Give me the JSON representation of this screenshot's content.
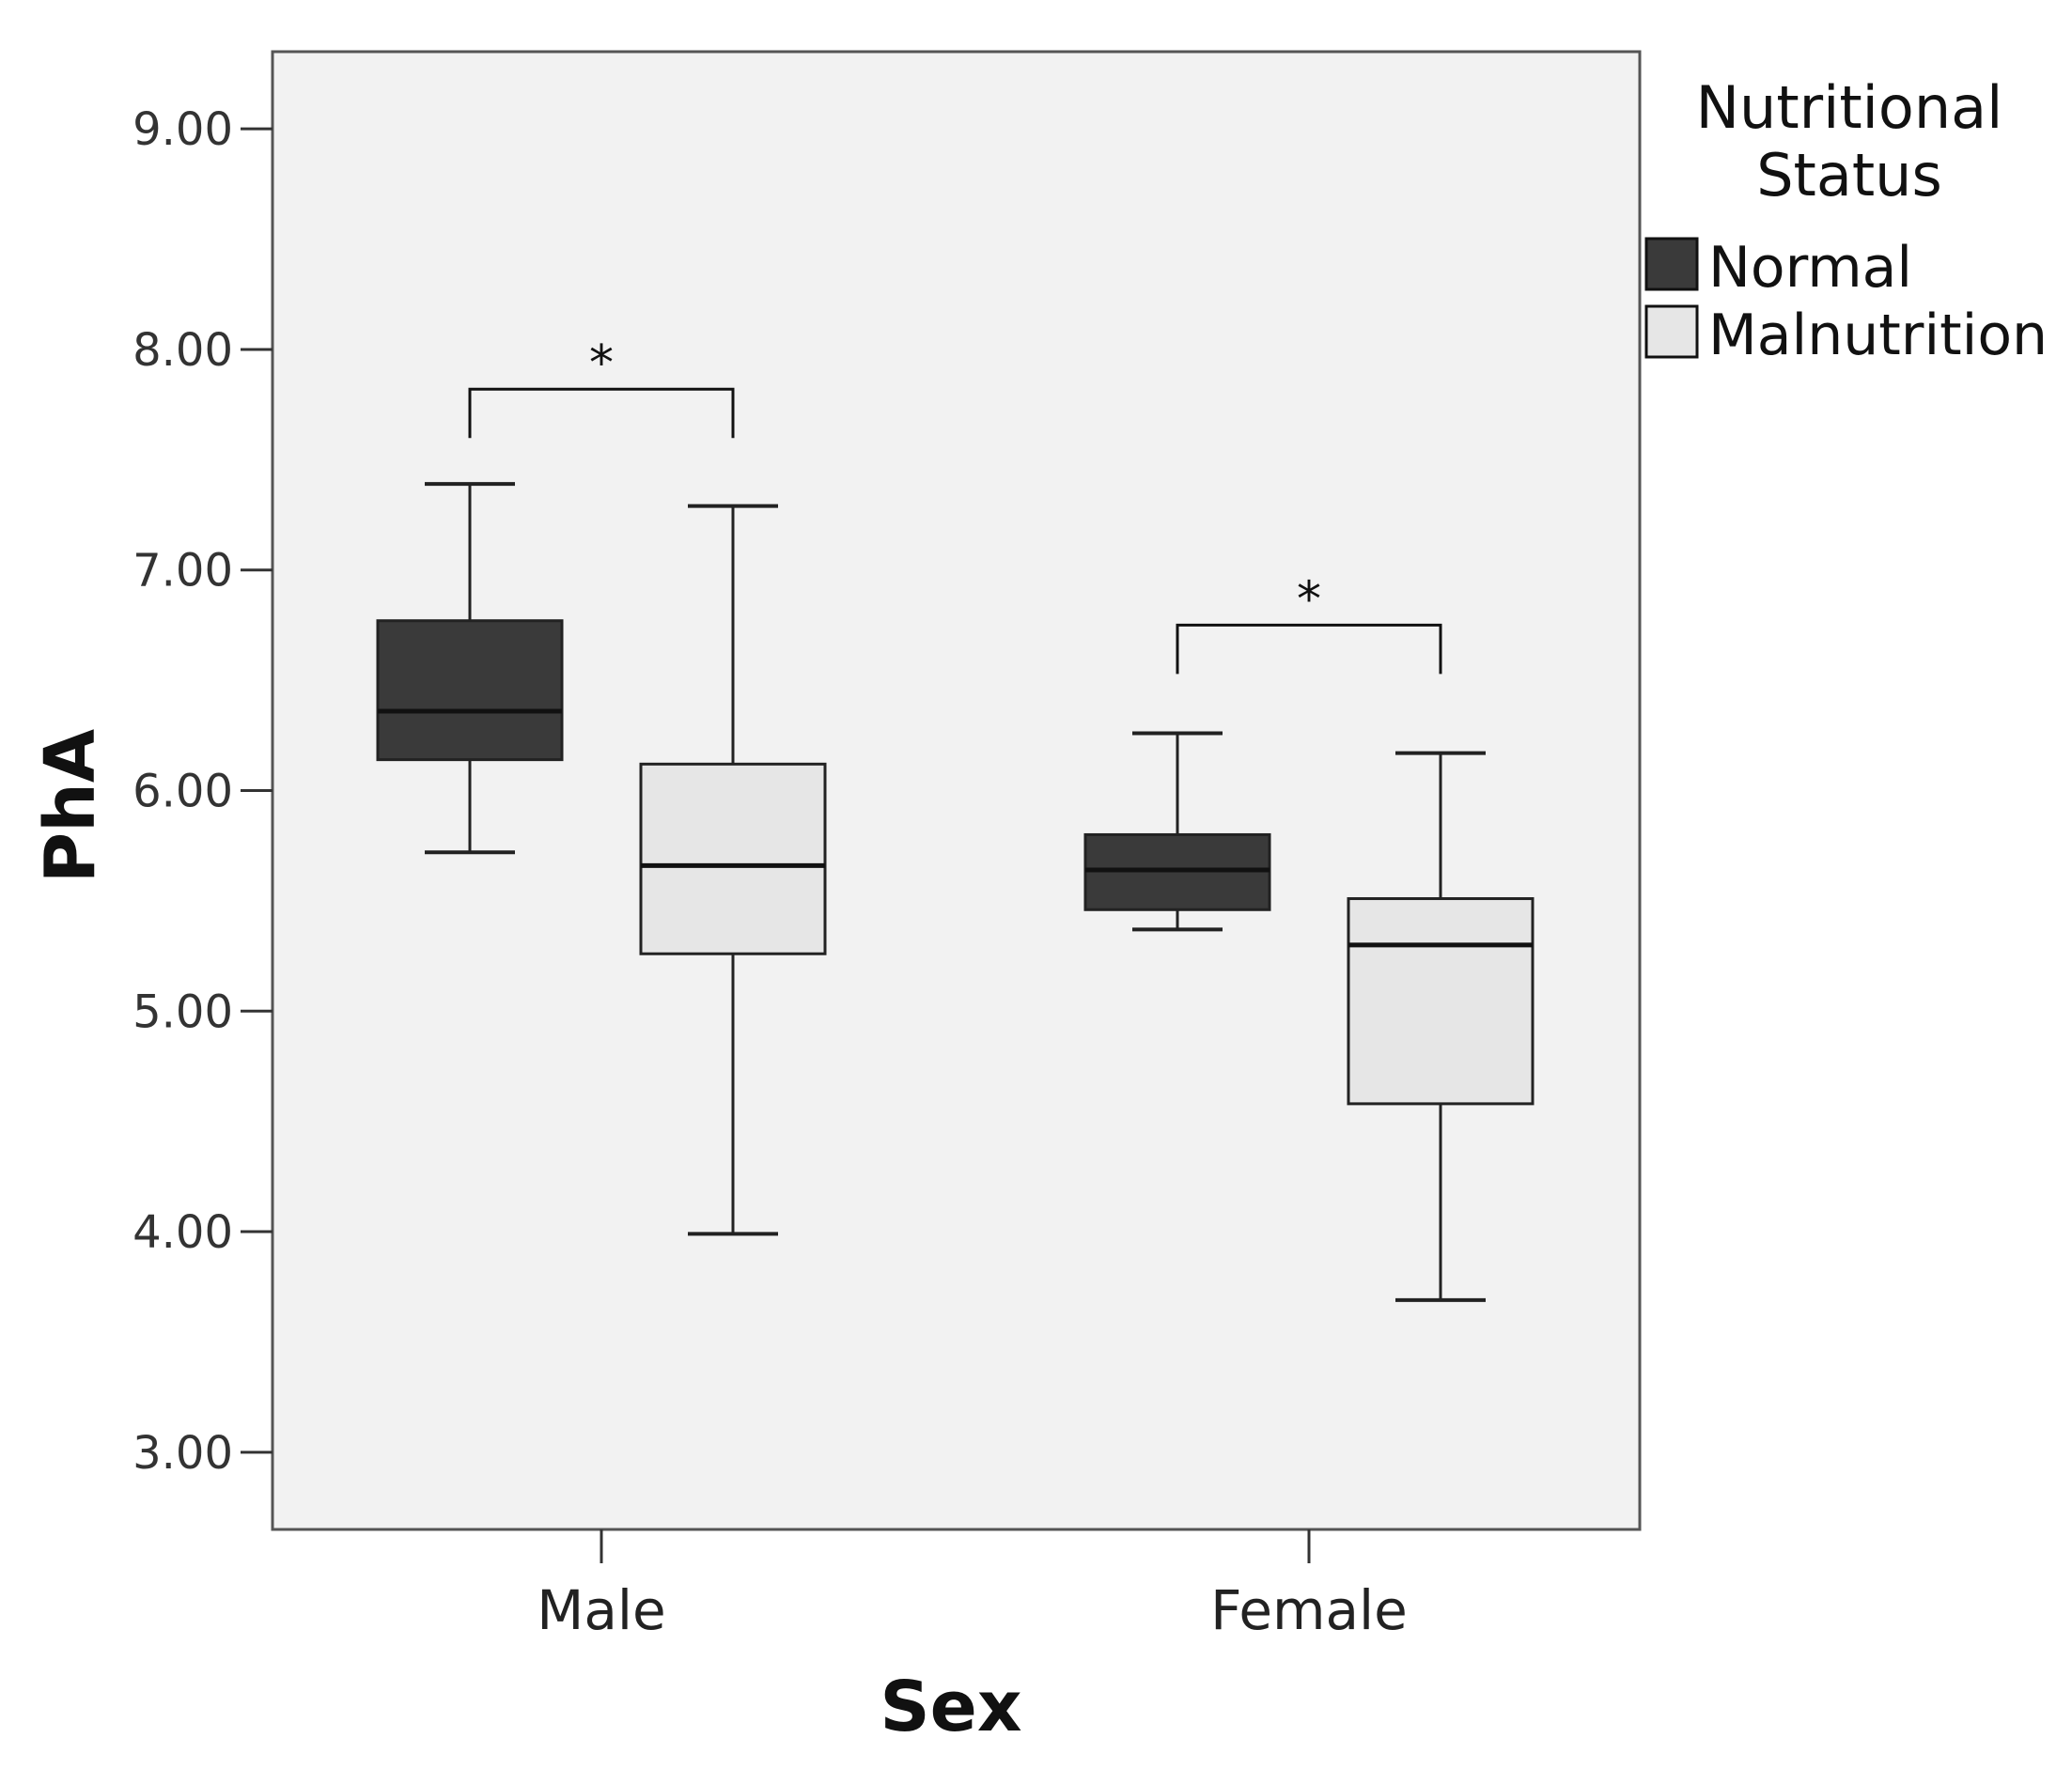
{
  "chart_data": {
    "type": "boxplot",
    "title": "",
    "xlabel": "Sex",
    "ylabel": "PhA",
    "ylim": [
      2.65,
      9.35
    ],
    "yticks": [
      3.0,
      4.0,
      5.0,
      6.0,
      7.0,
      8.0,
      9.0
    ],
    "ytick_labels": [
      "3.00",
      "4.00",
      "5.00",
      "6.00",
      "7.00",
      "8.00",
      "9.00"
    ],
    "categories": [
      "Male",
      "Female"
    ],
    "legend_title_lines": [
      "Nutritional",
      "Status"
    ],
    "legend_position": "right",
    "series": [
      {
        "name": "Normal",
        "color": "#3a3a3a",
        "boxes": [
          {
            "category": "Male",
            "whisker_low": 5.72,
            "q1": 6.14,
            "median": 6.36,
            "q3": 6.77,
            "whisker_high": 7.39
          },
          {
            "category": "Female",
            "whisker_low": 5.37,
            "q1": 5.46,
            "median": 5.64,
            "q3": 5.8,
            "whisker_high": 6.26
          }
        ]
      },
      {
        "name": "Malnutrition",
        "color": "#e6e6e6",
        "boxes": [
          {
            "category": "Male",
            "whisker_low": 3.99,
            "q1": 5.26,
            "median": 5.66,
            "q3": 6.12,
            "whisker_high": 7.29
          },
          {
            "category": "Female",
            "whisker_low": 3.69,
            "q1": 4.58,
            "median": 5.3,
            "q3": 5.51,
            "whisker_high": 6.17
          }
        ]
      }
    ],
    "significance": [
      {
        "category": "Male",
        "label": "*",
        "bracket_y": 7.82
      },
      {
        "category": "Female",
        "label": "*",
        "bracket_y": 6.75
      }
    ]
  }
}
